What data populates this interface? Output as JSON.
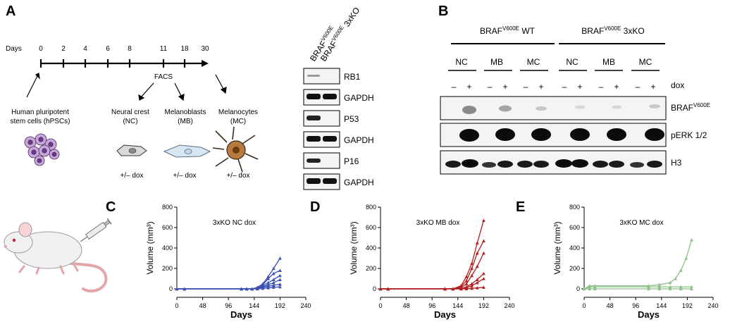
{
  "panel_labels": {
    "a": "A",
    "b": "B",
    "c": "C",
    "d": "D",
    "e": "E"
  },
  "panel_a": {
    "days_label": "Days",
    "day_ticks": [
      "0",
      "2",
      "4",
      "6",
      "8",
      "11",
      "18",
      "30"
    ],
    "facs_label": "FACS",
    "hpsc_label_1": "Human pluripotent",
    "hpsc_label_2": "stem cells (hPSCs)",
    "nc_label_1": "Neural crest",
    "nc_label_2": "(NC)",
    "mb_label_1": "Melanoblasts",
    "mb_label_2": "(MB)",
    "mc_label_1": "Melanocytes",
    "mc_label_2": "(MC)",
    "dox_label": "+/– dox",
    "lane1_base": "BRAF",
    "lane1_sup": "V600E",
    "lane2_base": "BRAF",
    "lane2_sup": "V600E",
    "lane2_suffix": " 3xKO",
    "blot_labels": [
      "RB1",
      "GAPDH",
      "P53",
      "GAPDH",
      "P16",
      "GAPDH"
    ]
  },
  "panel_b": {
    "group1_base": "BRAF",
    "group1_sup": "V600E",
    "group1_suffix": " WT",
    "group2_base": "BRAF",
    "group2_sup": "V600E",
    "group2_suffix": " 3xKO",
    "cell_types": [
      "NC",
      "MB",
      "MC",
      "NC",
      "MB",
      "MC"
    ],
    "minus_sign": "–",
    "plus_sign": "+",
    "dox_label": "dox",
    "row1_base": "BRAF",
    "row1_sup": "V600E",
    "row2_label": "pERK 1/2",
    "row3_label": "H3"
  },
  "chart_data": [
    {
      "type": "line",
      "panel": "C",
      "title": "3xKO NC dox",
      "xlabel": "Days",
      "ylabel": "Volume (mm³)",
      "xticks": [
        0,
        48,
        96,
        144,
        192,
        240
      ],
      "yticks": [
        0,
        200,
        400,
        600,
        800
      ],
      "xlim": [
        0,
        240
      ],
      "ylim": [
        0,
        800
      ],
      "color": "#3b50b5",
      "series": [
        {
          "x": [
            0,
            14,
            120,
            130,
            140,
            150,
            160,
            170,
            180,
            192
          ],
          "y": [
            0,
            0,
            0,
            0,
            0,
            5,
            20,
            40,
            60,
            90
          ]
        },
        {
          "x": [
            0,
            14,
            120,
            130,
            140,
            150,
            160,
            170,
            180,
            192
          ],
          "y": [
            0,
            0,
            0,
            0,
            0,
            15,
            50,
            120,
            200,
            300
          ]
        },
        {
          "x": [
            0,
            14,
            120,
            130,
            140,
            150,
            160,
            170,
            180,
            192
          ],
          "y": [
            0,
            0,
            0,
            0,
            0,
            10,
            40,
            100,
            150,
            180
          ]
        },
        {
          "x": [
            0,
            14,
            120,
            130,
            140,
            150,
            160,
            170,
            180,
            192
          ],
          "y": [
            0,
            0,
            0,
            0,
            0,
            5,
            30,
            60,
            90,
            130
          ]
        },
        {
          "x": [
            0,
            14,
            120,
            130,
            140,
            150,
            160,
            170,
            180,
            192
          ],
          "y": [
            0,
            0,
            0,
            0,
            0,
            5,
            15,
            25,
            35,
            45
          ]
        },
        {
          "x": [
            0,
            14,
            120,
            130,
            140,
            150,
            160,
            170,
            180,
            192
          ],
          "y": [
            0,
            0,
            0,
            0,
            0,
            0,
            5,
            10,
            15,
            20
          ]
        }
      ]
    },
    {
      "type": "line",
      "panel": "D",
      "title": "3xKO MB dox",
      "xlabel": "Days",
      "ylabel": "Volume (mm³)",
      "xticks": [
        0,
        48,
        96,
        144,
        192,
        240
      ],
      "yticks": [
        0,
        200,
        400,
        600,
        800
      ],
      "xlim": [
        0,
        240
      ],
      "ylim": [
        0,
        800
      ],
      "color": "#b01e1e",
      "series": [
        {
          "x": [
            0,
            14,
            120,
            135,
            150,
            160,
            170,
            180,
            192
          ],
          "y": [
            0,
            0,
            0,
            0,
            30,
            120,
            250,
            450,
            670
          ]
        },
        {
          "x": [
            0,
            14,
            120,
            135,
            150,
            160,
            170,
            180,
            192
          ],
          "y": [
            0,
            0,
            0,
            0,
            20,
            80,
            200,
            350,
            470
          ]
        },
        {
          "x": [
            0,
            14,
            120,
            135,
            150,
            160,
            170,
            180,
            192
          ],
          "y": [
            0,
            0,
            0,
            0,
            10,
            50,
            130,
            220,
            350
          ]
        },
        {
          "x": [
            0,
            14,
            120,
            135,
            150,
            160,
            170,
            180,
            192
          ],
          "y": [
            0,
            0,
            0,
            0,
            0,
            20,
            50,
            90,
            150
          ]
        },
        {
          "x": [
            0,
            14,
            120,
            135,
            150,
            160,
            170,
            180,
            192
          ],
          "y": [
            0,
            0,
            0,
            0,
            0,
            10,
            30,
            60,
            100
          ]
        },
        {
          "x": [
            0,
            14,
            120,
            135,
            150,
            160,
            170,
            180,
            192
          ],
          "y": [
            0,
            0,
            0,
            0,
            0,
            0,
            5,
            10,
            15
          ]
        }
      ]
    },
    {
      "type": "line",
      "panel": "E",
      "title": "3xKO MC dox",
      "xlabel": "Days",
      "ylabel": "Volume (mm³)",
      "xticks": [
        0,
        48,
        96,
        144,
        192,
        240
      ],
      "yticks": [
        0,
        200,
        400,
        600,
        800
      ],
      "xlim": [
        0,
        240
      ],
      "ylim": [
        0,
        800
      ],
      "color": "#8fbf8a",
      "series": [
        {
          "x": [
            0,
            10,
            20,
            120,
            140,
            160,
            170,
            180,
            190,
            200
          ],
          "y": [
            0,
            30,
            30,
            30,
            40,
            60,
            100,
            180,
            300,
            480
          ]
        },
        {
          "x": [
            0,
            10,
            20,
            120,
            140,
            160,
            180,
            200
          ],
          "y": [
            0,
            20,
            20,
            20,
            20,
            20,
            20,
            20
          ]
        },
        {
          "x": [
            0,
            10,
            20,
            120,
            140,
            160,
            180,
            200
          ],
          "y": [
            0,
            0,
            0,
            0,
            0,
            0,
            0,
            0
          ]
        }
      ]
    }
  ]
}
